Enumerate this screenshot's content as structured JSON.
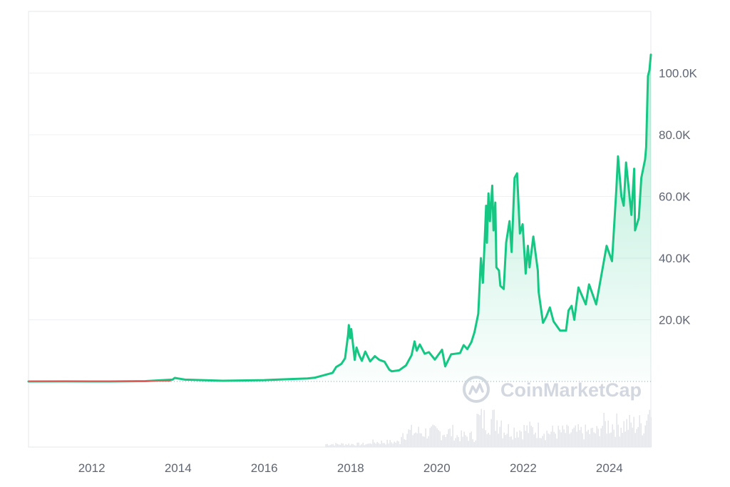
{
  "watermark": "CoinMarketCap",
  "colors": {
    "line": "#16c784",
    "fill": "#16c784",
    "grid": "#eef0f3",
    "frame": "#e4e7eb",
    "baseline_dots": "#9aa0a8",
    "volume": "#e3e7ec",
    "watermark": "#d3d8e0",
    "early_line": "#d9534f"
  },
  "chart_data": {
    "type": "area",
    "title": "",
    "xlabel": "",
    "ylabel": "",
    "x_ticks": [
      "2012",
      "2014",
      "2016",
      "2018",
      "2020",
      "2022",
      "2024"
    ],
    "y_ticks": [
      "20.0K",
      "40.0K",
      "60.0K",
      "80.0K",
      "100.0K"
    ],
    "y_tick_values": [
      20000,
      40000,
      60000,
      80000,
      100000
    ],
    "xlim": [
      "2010-07-15",
      "2024-12-17"
    ],
    "ylim": [
      0,
      120000
    ],
    "grid": true,
    "legend": "none",
    "series": [
      {
        "values": [
          [
            "2010-07-15",
            0
          ],
          [
            "2011-06-01",
            15
          ],
          [
            "2012-06-01",
            6
          ],
          [
            "2013-04-01",
            120
          ],
          [
            "2013-11-15",
            600
          ],
          [
            "2013-12-04",
            1150
          ],
          [
            "2014-03-01",
            600
          ],
          [
            "2015-01-15",
            220
          ],
          [
            "2016-01-01",
            430
          ],
          [
            "2016-06-15",
            700
          ],
          [
            "2016-12-31",
            960
          ],
          [
            "2017-03-01",
            1200
          ],
          [
            "2017-05-15",
            2000
          ],
          [
            "2017-08-01",
            2800
          ],
          [
            "2017-09-01",
            4700
          ],
          [
            "2017-10-15",
            5700
          ],
          [
            "2017-11-15",
            7500
          ],
          [
            "2017-12-10",
            15000
          ],
          [
            "2017-12-17",
            18300
          ],
          [
            "2017-12-28",
            14000
          ],
          [
            "2018-01-06",
            17000
          ],
          [
            "2018-02-05",
            7000
          ],
          [
            "2018-02-20",
            11000
          ],
          [
            "2018-03-15",
            8500
          ],
          [
            "2018-04-06",
            6700
          ],
          [
            "2018-05-05",
            9700
          ],
          [
            "2018-06-15",
            6500
          ],
          [
            "2018-07-25",
            8200
          ],
          [
            "2018-09-01",
            7000
          ],
          [
            "2018-10-15",
            6400
          ],
          [
            "2018-11-25",
            3800
          ],
          [
            "2018-12-15",
            3300
          ],
          [
            "2019-02-15",
            3600
          ],
          [
            "2019-04-15",
            5200
          ],
          [
            "2019-06-01",
            8500
          ],
          [
            "2019-06-26",
            13000
          ],
          [
            "2019-07-15",
            10000
          ],
          [
            "2019-08-10",
            12000
          ],
          [
            "2019-09-20",
            9000
          ],
          [
            "2019-10-26",
            9500
          ],
          [
            "2019-12-15",
            7100
          ],
          [
            "2020-02-14",
            10300
          ],
          [
            "2020-03-12",
            4900
          ],
          [
            "2020-05-01",
            8800
          ],
          [
            "2020-07-15",
            9200
          ],
          [
            "2020-08-15",
            11800
          ],
          [
            "2020-09-15",
            10500
          ],
          [
            "2020-10-20",
            12800
          ],
          [
            "2020-11-15",
            16000
          ],
          [
            "2020-12-17",
            22000
          ],
          [
            "2021-01-08",
            40000
          ],
          [
            "2021-01-25",
            32000
          ],
          [
            "2021-02-21",
            57000
          ],
          [
            "2021-02-28",
            45000
          ],
          [
            "2021-03-13",
            61000
          ],
          [
            "2021-03-25",
            52000
          ],
          [
            "2021-04-14",
            63500
          ],
          [
            "2021-04-25",
            49000
          ],
          [
            "2021-05-10",
            58000
          ],
          [
            "2021-05-19",
            37000
          ],
          [
            "2021-06-10",
            36000
          ],
          [
            "2021-06-22",
            31000
          ],
          [
            "2021-07-20",
            30000
          ],
          [
            "2021-08-10",
            45000
          ],
          [
            "2021-09-07",
            52000
          ],
          [
            "2021-09-25",
            42000
          ],
          [
            "2021-10-20",
            66000
          ],
          [
            "2021-11-10",
            67500
          ],
          [
            "2021-12-04",
            48000
          ],
          [
            "2021-12-27",
            51000
          ],
          [
            "2022-01-22",
            35000
          ],
          [
            "2022-02-10",
            44000
          ],
          [
            "2022-02-24",
            37000
          ],
          [
            "2022-03-28",
            47000
          ],
          [
            "2022-05-05",
            36000
          ],
          [
            "2022-05-12",
            29000
          ],
          [
            "2022-06-18",
            19000
          ],
          [
            "2022-07-15",
            21000
          ],
          [
            "2022-08-15",
            24000
          ],
          [
            "2022-09-15",
            19500
          ],
          [
            "2022-11-09",
            16500
          ],
          [
            "2022-12-30",
            16500
          ],
          [
            "2023-01-20",
            23000
          ],
          [
            "2023-02-15",
            24500
          ],
          [
            "2023-03-10",
            20000
          ],
          [
            "2023-04-14",
            30500
          ],
          [
            "2023-06-15",
            25000
          ],
          [
            "2023-07-13",
            31500
          ],
          [
            "2023-09-11",
            25000
          ],
          [
            "2023-10-25",
            34500
          ],
          [
            "2023-12-08",
            44000
          ],
          [
            "2024-01-23",
            39000
          ],
          [
            "2024-02-28",
            62000
          ],
          [
            "2024-03-14",
            73000
          ],
          [
            "2024-04-12",
            60000
          ],
          [
            "2024-05-01",
            57000
          ],
          [
            "2024-05-21",
            71000
          ],
          [
            "2024-07-05",
            54000
          ],
          [
            "2024-07-29",
            69000
          ],
          [
            "2024-08-05",
            49000
          ],
          [
            "2024-09-06",
            53000
          ],
          [
            "2024-09-27",
            66000
          ],
          [
            "2024-10-29",
            72000
          ],
          [
            "2024-11-07",
            76000
          ],
          [
            "2024-11-22",
            99000
          ],
          [
            "2024-12-05",
            101000
          ],
          [
            "2024-12-17",
            106000
          ]
        ]
      }
    ]
  }
}
